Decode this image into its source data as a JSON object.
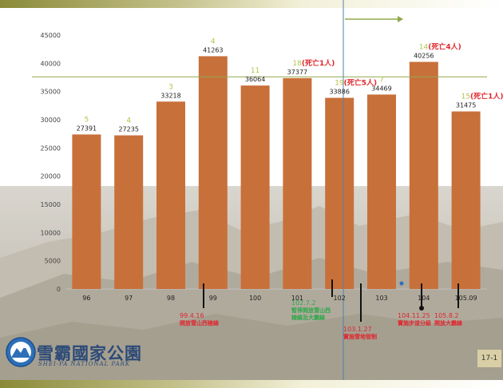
{
  "chart_data": {
    "type": "bar",
    "categories": [
      "96",
      "97",
      "98",
      "99",
      "100",
      "101",
      "102",
      "103",
      "104",
      "105.09"
    ],
    "values": [
      27391,
      27235,
      33218,
      41263,
      36064,
      37377,
      33886,
      34469,
      40256,
      31475
    ],
    "value_labels": [
      "27391",
      "27235",
      "33218",
      "41263",
      "36064",
      "37377",
      "33886",
      "34469",
      "40256",
      "31475"
    ],
    "ylim": [
      0,
      45000
    ],
    "yticks": [
      "0",
      "5000",
      "10000",
      "15000",
      "20000",
      "25000",
      "30000",
      "35000",
      "40000",
      "45000"
    ],
    "bar_color": "#c8703a",
    "reference_line": {
      "value": 37600,
      "color": "#8fa84a"
    },
    "above_labels": [
      {
        "category": "96",
        "count": "5",
        "note": ""
      },
      {
        "category": "97",
        "count": "4",
        "note": ""
      },
      {
        "category": "98",
        "count": "3",
        "note": ""
      },
      {
        "category": "99",
        "count": "4",
        "note": ""
      },
      {
        "category": "100",
        "count": "11",
        "note": ""
      },
      {
        "category": "101",
        "count": "18",
        "note": "(死亡1人)"
      },
      {
        "category": "102",
        "count": "19",
        "note": "(死亡5人)"
      },
      {
        "category": "103",
        "count": "7",
        "note": ""
      },
      {
        "category": "104",
        "count": "14",
        "note": "(死亡4人)"
      },
      {
        "category": "105.09",
        "count": "15",
        "note": "(死亡1人)"
      }
    ],
    "count_color": "#b8c24a",
    "note_color": "#e0262e",
    "annotations": [
      {
        "anchor": "99",
        "lines": [
          "99.4.16",
          "開放雪山西稜線"
        ],
        "color": "#e0262e"
      },
      {
        "anchor": "101",
        "lines": [
          "102.7.2",
          "暫停開放雪山西",
          "稜線及大霸線"
        ],
        "color": "#2ea84a"
      },
      {
        "anchor": "102",
        "lines": [
          "103.1.27",
          "實施雪地管制"
        ],
        "color": "#e0262e"
      },
      {
        "anchor": "104",
        "lines": [
          "104.11.25",
          "實施步道分級"
        ],
        "color": "#e0262e"
      },
      {
        "anchor": "105.09",
        "lines": [
          "105.8.2",
          "開放大霸線"
        ],
        "color": "#e0262e"
      }
    ]
  },
  "park": {
    "name_cn": "雪霸國家公園",
    "name_en": "SHEI-PA NATIONAL PARK"
  },
  "page_number": "17-1",
  "colors": {
    "vline": "#4f82a8",
    "arrow": "#8fa84a"
  }
}
